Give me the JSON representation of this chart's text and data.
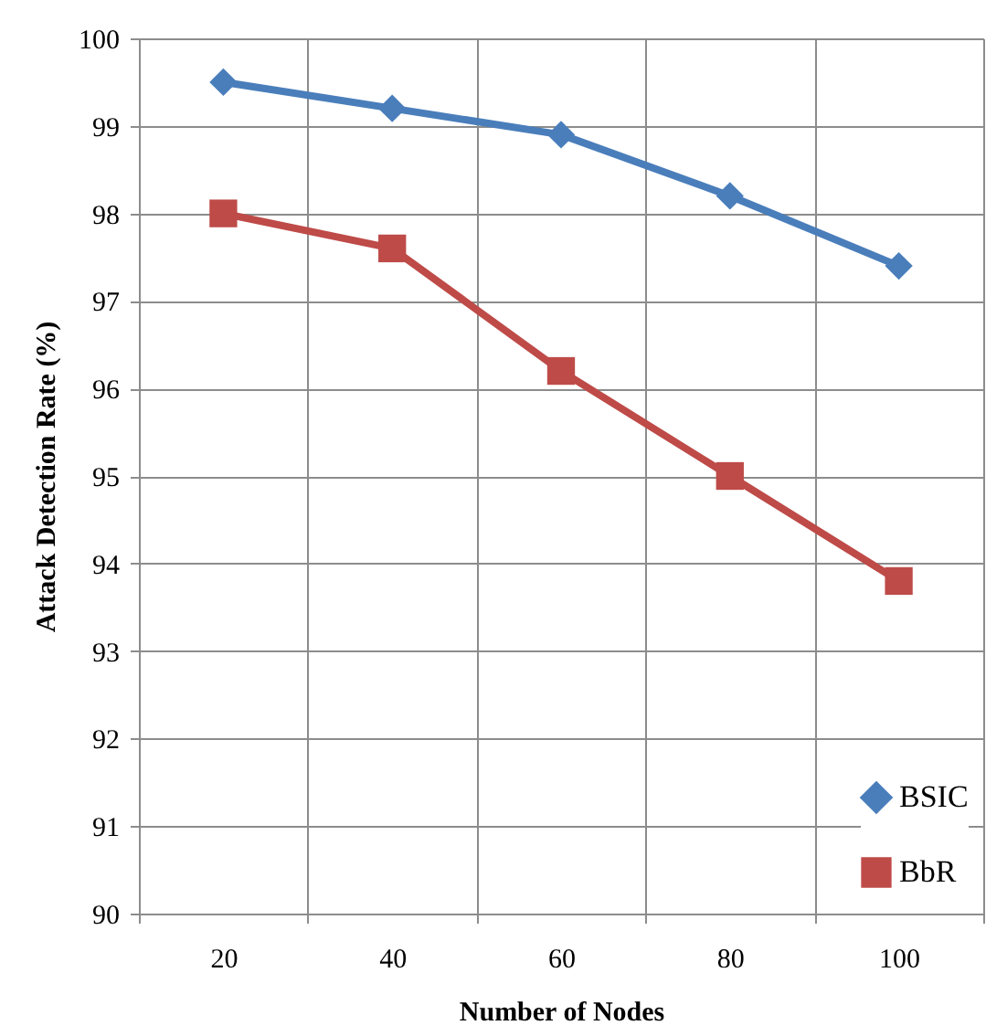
{
  "chart_data": {
    "type": "line",
    "xlabel": "Number of Nodes",
    "ylabel": "Attack Detection Rate (%)",
    "categories": [
      "20",
      "40",
      "60",
      "80",
      "100"
    ],
    "series": [
      {
        "name": "BSIC",
        "color": "#4a7ebb",
        "marker": "diamond",
        "values": [
          99.5,
          99.2,
          98.9,
          98.2,
          97.4
        ]
      },
      {
        "name": "BbR",
        "color": "#be4b48",
        "marker": "square",
        "values": [
          98.0,
          97.6,
          96.2,
          95.0,
          93.8
        ]
      }
    ],
    "ylim": [
      90,
      100
    ],
    "yticks": [
      90,
      91,
      92,
      93,
      94,
      95,
      96,
      97,
      98,
      99,
      100
    ],
    "grid": true,
    "legend": "bottom right"
  }
}
